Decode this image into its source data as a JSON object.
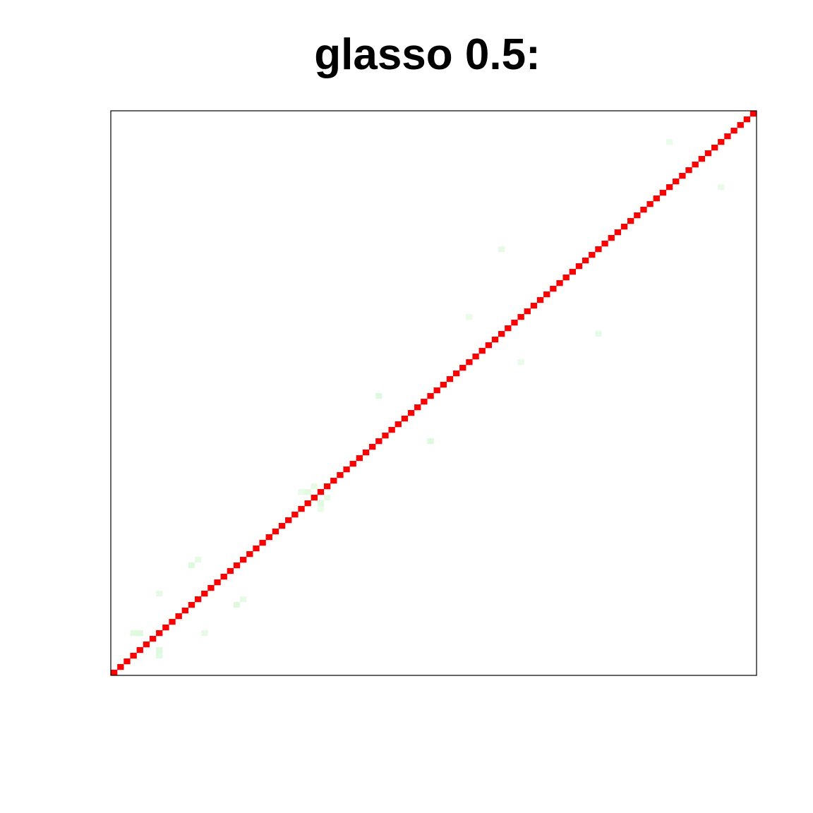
{
  "chart_data": {
    "type": "heatmap",
    "title": "glasso 0.5:",
    "xlabel": "",
    "ylabel": "",
    "n": 100,
    "axes_shown": false,
    "grid": false,
    "diagonal_value": 1.0,
    "colors": {
      "diagonal": "#ff0000",
      "offdiag": "#d6f7d6",
      "background": "#ffffff",
      "frame": "#000000"
    },
    "cells": [
      {
        "row": 4,
        "col": 7,
        "value": 0.12
      },
      {
        "row": 7,
        "col": 4,
        "value": 0.12
      },
      {
        "row": 3,
        "col": 7,
        "value": 0.1
      },
      {
        "row": 7,
        "col": 3,
        "value": 0.1
      },
      {
        "row": 7,
        "col": 14,
        "value": 0.08
      },
      {
        "row": 14,
        "col": 7,
        "value": 0.08
      },
      {
        "row": 12,
        "col": 19,
        "value": 0.12
      },
      {
        "row": 19,
        "col": 12,
        "value": 0.12
      },
      {
        "row": 13,
        "col": 20,
        "value": 0.08
      },
      {
        "row": 20,
        "col": 13,
        "value": 0.08
      },
      {
        "row": 30,
        "col": 32,
        "value": 0.1
      },
      {
        "row": 32,
        "col": 30,
        "value": 0.1
      },
      {
        "row": 31,
        "col": 33,
        "value": 0.08
      },
      {
        "row": 33,
        "col": 31,
        "value": 0.08
      },
      {
        "row": 29,
        "col": 32,
        "value": 0.06
      },
      {
        "row": 32,
        "col": 29,
        "value": 0.06
      },
      {
        "row": 41,
        "col": 49,
        "value": 0.12
      },
      {
        "row": 49,
        "col": 41,
        "value": 0.12
      },
      {
        "row": 55,
        "col": 63,
        "value": 0.06
      },
      {
        "row": 63,
        "col": 55,
        "value": 0.06
      },
      {
        "row": 60,
        "col": 75,
        "value": 0.08
      },
      {
        "row": 75,
        "col": 60,
        "value": 0.08
      },
      {
        "row": 86,
        "col": 94,
        "value": 0.06
      },
      {
        "row": 94,
        "col": 86,
        "value": 0.06
      }
    ]
  }
}
